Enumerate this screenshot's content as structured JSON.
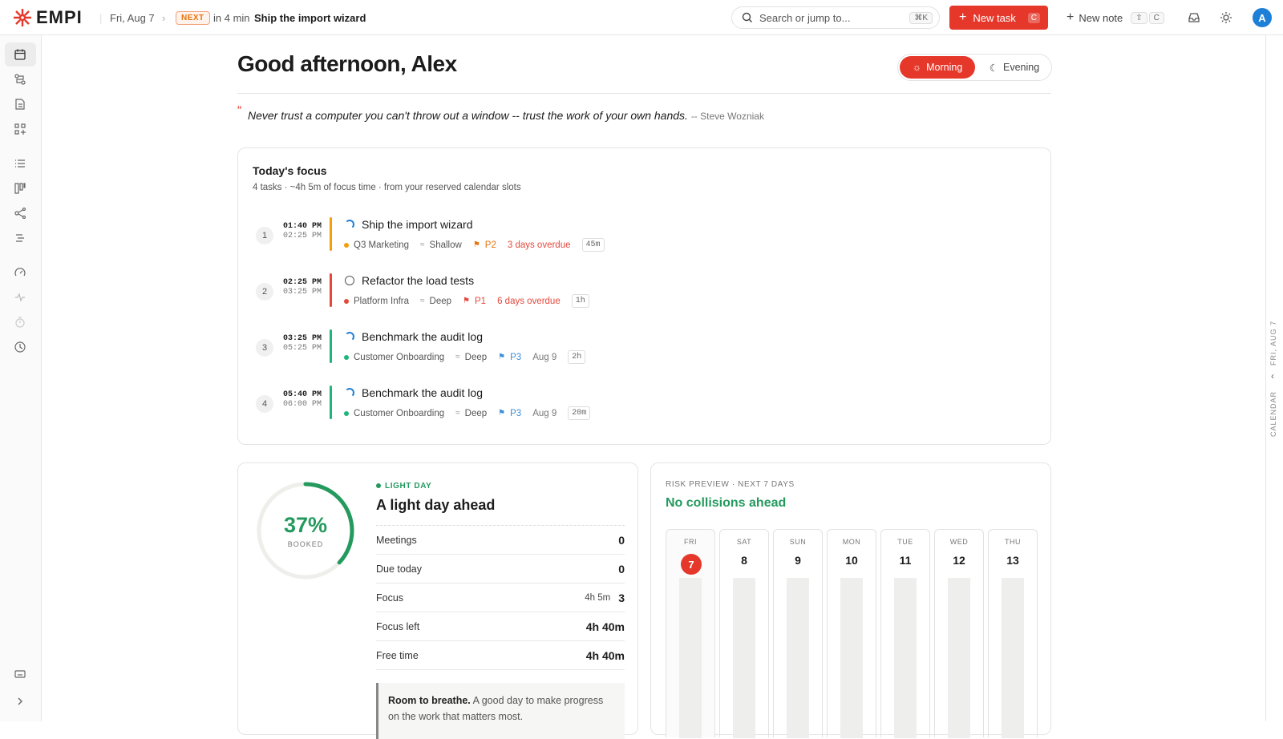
{
  "topbar": {
    "logo": "EMPI",
    "date": "Fri, Aug 7",
    "next_badge": "NEXT",
    "next_in": "in 4 min",
    "next_title": "Ship the import wizard",
    "search_placeholder": "Search or jump to...",
    "search_shortcut": "⌘K",
    "new_task": "New task",
    "new_task_key": "C",
    "new_note": "New note",
    "new_note_key": "C",
    "avatar": "A"
  },
  "header": {
    "greeting": "Good afternoon, Alex",
    "modes": [
      "Morning",
      "Evening"
    ]
  },
  "quote": {
    "text": "Never trust a computer you can't throw out a window -- trust the work of your own hands.",
    "author": "-- Steve Wozniak"
  },
  "focus": {
    "title": "Today's focus",
    "subtitle": "4 tasks · ~4h 5m of focus time · from your reserved calendar slots",
    "tasks": [
      {
        "index": "1",
        "start": "01:40 PM",
        "end": "02:25 PM",
        "title": "Ship the import wizard",
        "project": "Q3 Marketing",
        "project_color": "#f59e0b",
        "depth": "Shallow",
        "priority": "P2",
        "priority_color": "#e8730c",
        "due": "3 days overdue",
        "due_color": "#e5483b",
        "duration": "45m",
        "color": "#f59e0b"
      },
      {
        "index": "2",
        "start": "02:25 PM",
        "end": "03:25 PM",
        "title": "Refactor the load tests",
        "project": "Platform Infra",
        "project_color": "#e5483b",
        "depth": "Deep",
        "priority": "P1",
        "priority_color": "#e5483b",
        "due": "6 days overdue",
        "due_color": "#e5483b",
        "duration": "1h",
        "color": "#e5483b"
      },
      {
        "index": "3",
        "start": "03:25 PM",
        "end": "05:25 PM",
        "title": "Benchmark the audit log",
        "project": "Customer Onboarding",
        "project_color": "#1fb57a",
        "depth": "Deep",
        "priority": "P3",
        "priority_color": "#3b8fd9",
        "due": "Aug 9",
        "due_color": "#777777",
        "duration": "2h",
        "color": "#1fb57a"
      },
      {
        "index": "4",
        "start": "05:40 PM",
        "end": "06:00 PM",
        "title": "Benchmark the audit log",
        "project": "Customer Onboarding",
        "project_color": "#1fb57a",
        "depth": "Deep",
        "priority": "P3",
        "priority_color": "#3b8fd9",
        "due": "Aug 9",
        "due_color": "#777777",
        "duration": "20m",
        "color": "#1fb57a"
      }
    ]
  },
  "light_day": {
    "booked": "37%",
    "booked_label": "BOOKED",
    "badge": "LIGHT DAY",
    "title": "A light day ahead",
    "rows": [
      {
        "label": "Meetings",
        "value": "0"
      },
      {
        "label": "Due today",
        "value": "0"
      },
      {
        "label": "Focus",
        "detail": "4h 5m",
        "value": "3"
      },
      {
        "label": "Focus left",
        "value": "4h 40m"
      },
      {
        "label": "Free time",
        "value": "4h 40m"
      }
    ],
    "note_bold": "Room to breathe.",
    "note_text": "A good day to make progress on the work that matters most."
  },
  "risk": {
    "label": "RISK PREVIEW · NEXT 7 DAYS",
    "title": "No collisions ahead",
    "days": [
      {
        "dow": "FRI",
        "date": "7"
      },
      {
        "dow": "SAT",
        "date": "8"
      },
      {
        "dow": "SUN",
        "date": "9"
      },
      {
        "dow": "MON",
        "date": "10"
      },
      {
        "dow": "TUE",
        "date": "11"
      },
      {
        "dow": "WED",
        "date": "12"
      },
      {
        "dow": "THU",
        "date": "13"
      }
    ]
  },
  "rail": {
    "date": "FRI, AUG 7",
    "label": "CALENDAR"
  }
}
